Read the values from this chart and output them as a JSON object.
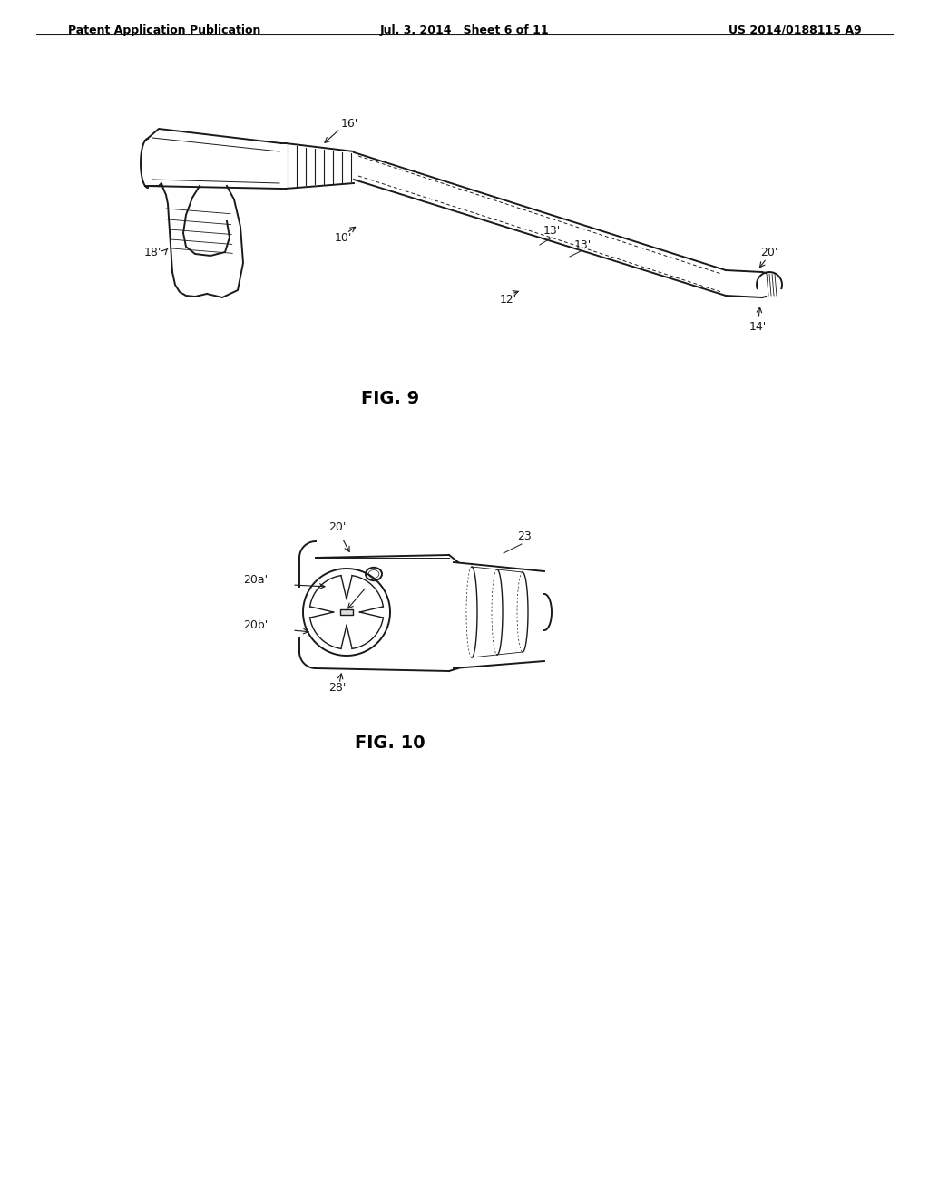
{
  "background_color": "#ffffff",
  "header_left": "Patent Application Publication",
  "header_center": "Jul. 3, 2014   Sheet 6 of 11",
  "header_right": "US 2014/0188115 A9",
  "fig9_caption": "FIG. 9",
  "fig10_caption": "FIG. 10",
  "line_color": "#1a1a1a",
  "text_color": "#000000",
  "label_fontsize": 9,
  "caption_fontsize": 14
}
